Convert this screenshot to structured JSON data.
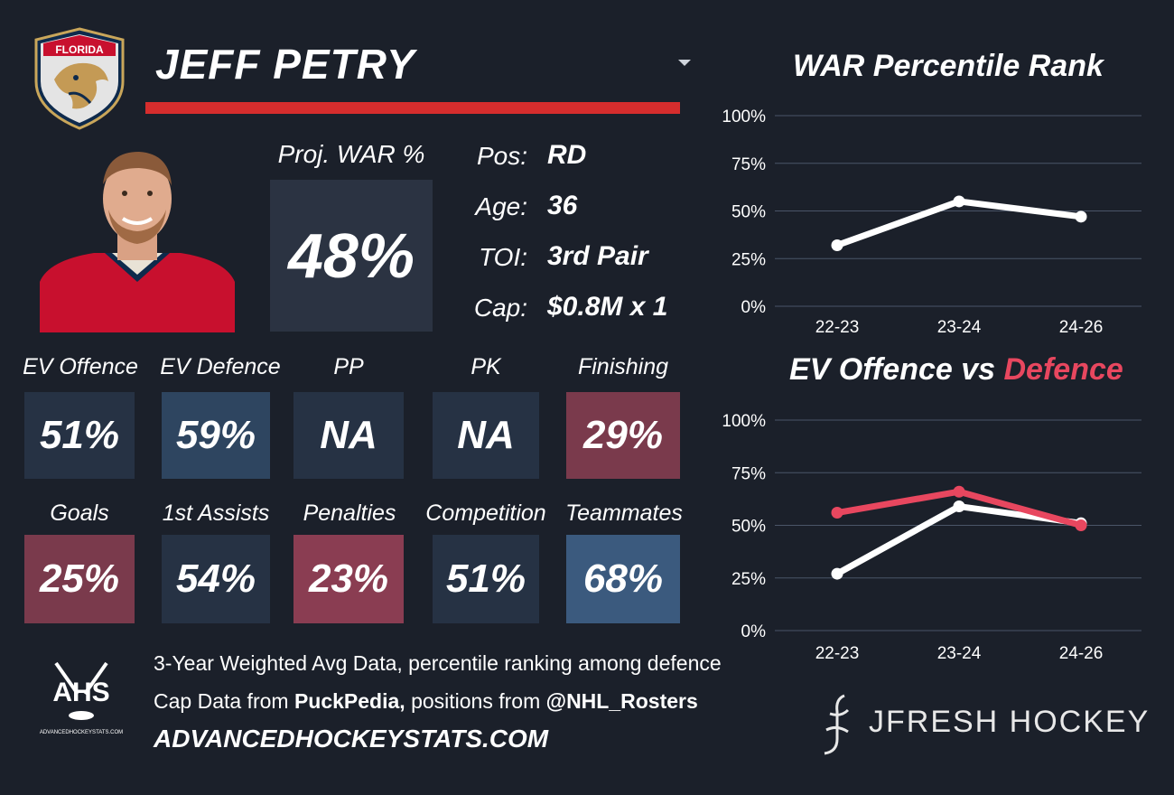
{
  "player": {
    "name": "JEFF PETRY",
    "team_logo": "florida-panthers-logo"
  },
  "proj_war": {
    "label": "Proj. WAR %",
    "value": "48%"
  },
  "info": [
    {
      "label": "Pos:",
      "value": "RD"
    },
    {
      "label": "Age:",
      "value": "36"
    },
    {
      "label": "TOI:",
      "value": "3rd Pair"
    },
    {
      "label": "Cap:",
      "value": "$0.8M x 1"
    }
  ],
  "stats": [
    {
      "label": "EV Offence",
      "value": "51%",
      "color": "#263244"
    },
    {
      "label": "EV Defence",
      "value": "59%",
      "color": "#2e4560"
    },
    {
      "label": "PP",
      "value": "NA",
      "color": "#263244"
    },
    {
      "label": "PK",
      "value": "NA",
      "color": "#263244"
    },
    {
      "label": "Finishing",
      "value": "29%",
      "color": "#7a3a4c"
    },
    {
      "label": "Goals",
      "value": "25%",
      "color": "#7a3a4c"
    },
    {
      "label": "1st Assists",
      "value": "54%",
      "color": "#263244"
    },
    {
      "label": "Penalties",
      "value": "23%",
      "color": "#8a3d52"
    },
    {
      "label": "Competition",
      "value": "51%",
      "color": "#263244"
    },
    {
      "label": "Teammates",
      "value": "68%",
      "color": "#3b5a7e"
    }
  ],
  "footer": {
    "line1": "3-Year Weighted Avg Data, percentile ranking among defence",
    "line2_prefix": "Cap Data from ",
    "line2_source": "PuckPedia,",
    "line2_mid": " positions from ",
    "line2_handle": "@NHL_Rosters",
    "site": "ADVANCEDHOCKEYSTATS.COM",
    "ahs_logo_text": "AHS",
    "ahs_logo_subtext": "ADVANCEDHOCKEYSTATS.COM",
    "brand": "JFRESH HOCKEY"
  },
  "colors": {
    "background": "#1b202a",
    "accent_red": "#d62d2d",
    "defence_line": "#e8475f",
    "offence_line": "#ffffff",
    "grid": "#4a5568"
  },
  "chart_data": [
    {
      "type": "line",
      "title": "WAR Percentile Rank",
      "x": [
        "22-23",
        "23-24",
        "24-26"
      ],
      "yticks": [
        "100%",
        "75%",
        "50%",
        "25%",
        "0%"
      ],
      "ylim": [
        0,
        100
      ],
      "series": [
        {
          "values": [
            32,
            55,
            47
          ],
          "color": "#ffffff"
        }
      ]
    },
    {
      "type": "line",
      "title_part1": "EV Offence vs ",
      "title_part2": "Defence",
      "x": [
        "22-23",
        "23-24",
        "24-26"
      ],
      "yticks": [
        "100%",
        "75%",
        "50%",
        "25%",
        "0%"
      ],
      "ylim": [
        0,
        100
      ],
      "series": [
        {
          "values": [
            27,
            59,
            51
          ],
          "color": "#ffffff"
        },
        {
          "values": [
            56,
            66,
            50
          ],
          "color": "#e8475f"
        }
      ]
    }
  ]
}
